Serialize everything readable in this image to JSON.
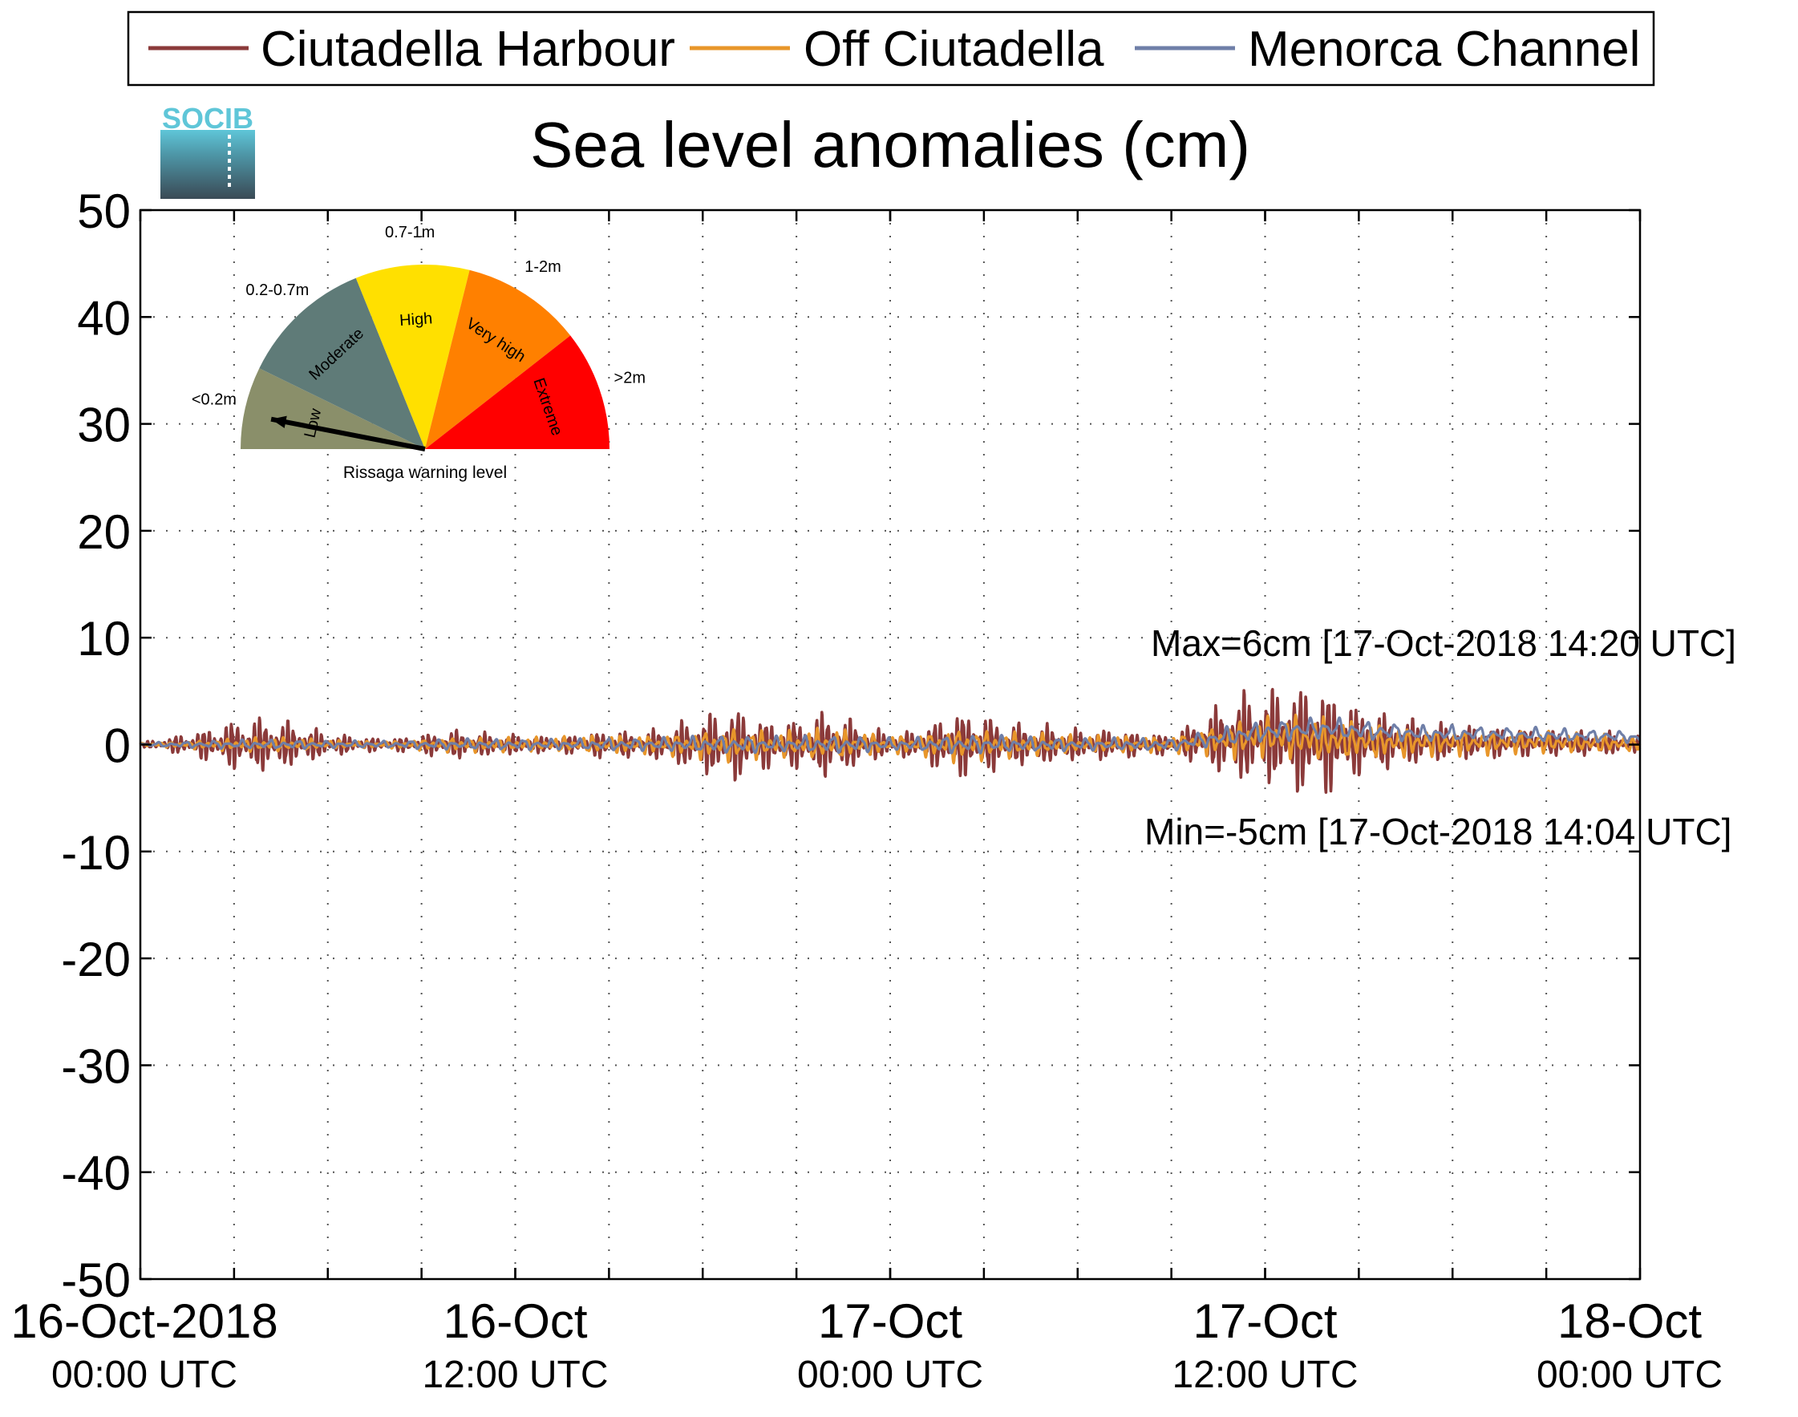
{
  "legend": {
    "placement": "top",
    "entries": [
      {
        "name": "Ciutadella Harbour",
        "color": "#8B3A3A"
      },
      {
        "name": "Off Ciutadella",
        "color": "#E8962A"
      },
      {
        "name": "Menorca Channel",
        "color": "#6F7FA8"
      }
    ]
  },
  "logo": {
    "text": "SOCIB"
  },
  "gauge": {
    "caption": "Rissaga warning level",
    "needle_level": "Low",
    "sectors": [
      {
        "name": "Low",
        "range": "<0.2m",
        "color": "#8A8F6A",
        "range_color": "#7A7A55"
      },
      {
        "name": "Moderate",
        "range": "0.2-0.7m",
        "color": "#5F7B78",
        "range_color": "#4F6A6A"
      },
      {
        "name": "High",
        "range": "0.7-1m",
        "color": "#FFE000",
        "range_color": "#E8C800"
      },
      {
        "name": "Very high",
        "range": "1-2m",
        "color": "#FF8000",
        "range_color": "#F07000"
      },
      {
        "name": "Extreme",
        "range": ">2m",
        "color": "#FF0000",
        "range_color": "#FF0000"
      }
    ]
  },
  "annotations": {
    "max": "Max=6cm [17-Oct-2018 14:20 UTC]",
    "min": "Min=-5cm [17-Oct-2018 14:04 UTC]",
    "color": "#8B3A3A"
  },
  "chart_data": {
    "type": "line",
    "title": "Sea level anomalies (cm)",
    "xlabel": "",
    "ylabel": "",
    "ylim": [
      -50,
      50
    ],
    "yticks": [
      -50,
      -40,
      -30,
      -20,
      -10,
      0,
      10,
      20,
      30,
      40,
      50
    ],
    "xlim_hours": [
      0,
      48
    ],
    "grid": true,
    "grid_x_hours": [
      3,
      6,
      9,
      12,
      15,
      18,
      21,
      24,
      27,
      30,
      33,
      36,
      39,
      42,
      45
    ],
    "xticks": [
      {
        "hour": 0,
        "line1": "16-Oct-2018",
        "line2": "00:00 UTC"
      },
      {
        "hour": 12,
        "line1": "16-Oct",
        "line2": "12:00 UTC"
      },
      {
        "hour": 24,
        "line1": "17-Oct",
        "line2": "00:00 UTC"
      },
      {
        "hour": 36,
        "line1": "17-Oct",
        "line2": "12:00 UTC"
      },
      {
        "hour": 48,
        "line1": "18-Oct",
        "line2": "00:00 UTC"
      }
    ],
    "envelope_hours": [
      0,
      1,
      2,
      3,
      4,
      5,
      6,
      7,
      8,
      9,
      10,
      11,
      12,
      13,
      14,
      15,
      16,
      17,
      18,
      19,
      20,
      21,
      22,
      23,
      24,
      25,
      26,
      27,
      28,
      29,
      30,
      31,
      32,
      33,
      34,
      35,
      36,
      37,
      38,
      39,
      40,
      41,
      42,
      43,
      44,
      45,
      46,
      47,
      48
    ],
    "series": [
      {
        "name": "Ciutadella Harbour",
        "color": "#8B3A3A",
        "period_hours": 0.18,
        "amplitude_cm": [
          0.2,
          0.8,
          1.5,
          2.5,
          2.8,
          2.2,
          1.2,
          0.8,
          0.6,
          1.0,
          1.5,
          1.2,
          1.0,
          0.8,
          1.0,
          1.5,
          1.2,
          2.0,
          3.0,
          3.8,
          2.5,
          2.5,
          3.5,
          2.2,
          1.2,
          1.5,
          3.5,
          3.0,
          2.2,
          2.0,
          1.6,
          1.5,
          1.2,
          1.0,
          2.5,
          4.5,
          4.8,
          5.5,
          5.5,
          3.5,
          2.8,
          2.2,
          1.8,
          1.6,
          1.5,
          1.3,
          1.3,
          1.2,
          0.8
        ],
        "offset_cm": [
          0,
          0,
          0,
          0,
          0,
          0,
          0,
          0,
          0,
          0,
          0,
          0,
          0,
          0,
          0,
          0,
          0,
          0,
          0,
          0,
          0,
          0,
          0,
          0,
          0,
          0,
          0,
          0,
          0,
          0,
          0,
          0,
          0,
          0,
          0.3,
          0.5,
          0.8,
          0.5,
          0.3,
          0.3,
          0.2,
          0.2,
          0.2,
          0.2,
          0.2,
          0.2,
          0.1,
          0.1,
          0
        ]
      },
      {
        "name": "Off Ciutadella",
        "color": "#E8962A",
        "period_hours": 0.3,
        "amplitude_cm": [
          0.2,
          0.3,
          0.5,
          0.7,
          0.8,
          0.7,
          0.5,
          0.4,
          0.4,
          0.6,
          0.8,
          0.8,
          0.8,
          0.8,
          0.9,
          1.0,
          1.0,
          1.2,
          1.5,
          1.8,
          1.5,
          1.5,
          1.8,
          1.4,
          1.0,
          1.2,
          1.8,
          1.6,
          1.4,
          1.2,
          1.0,
          1.0,
          0.9,
          0.9,
          1.4,
          2.0,
          2.2,
          2.4,
          2.4,
          2.0,
          1.8,
          1.5,
          1.4,
          1.3,
          1.2,
          1.2,
          1.1,
          1.0,
          0.8
        ],
        "offset_cm": [
          0,
          0,
          0,
          0,
          0,
          0,
          0,
          0,
          0,
          0,
          0,
          0,
          0,
          0,
          0,
          0,
          0,
          0,
          0,
          0,
          0,
          0,
          0,
          0,
          0,
          0,
          0,
          0,
          0,
          0,
          0,
          0,
          0,
          0,
          0.3,
          0.5,
          0.8,
          0.6,
          0.4,
          0.3,
          0.2,
          0.2,
          0.2,
          0.2,
          0.2,
          0.2,
          0.1,
          0.1,
          0
        ]
      },
      {
        "name": "Menorca Channel",
        "color": "#6F7FA8",
        "period_hours": 0.45,
        "amplitude_cm": [
          0.2,
          0.3,
          0.4,
          0.5,
          0.5,
          0.5,
          0.4,
          0.4,
          0.4,
          0.5,
          0.6,
          0.6,
          0.6,
          0.6,
          0.6,
          0.7,
          0.7,
          0.8,
          0.9,
          1.0,
          0.9,
          0.9,
          1.0,
          0.9,
          0.7,
          0.8,
          1.0,
          1.0,
          0.9,
          0.8,
          0.7,
          0.7,
          0.7,
          0.7,
          0.9,
          1.1,
          1.2,
          1.2,
          1.2,
          1.1,
          1.0,
          0.9,
          0.9,
          0.8,
          0.8,
          0.8,
          0.7,
          0.7,
          0.6
        ],
        "offset_cm": [
          0,
          0,
          0,
          0,
          0,
          0,
          0,
          0,
          0,
          0,
          0,
          0,
          0,
          0,
          0,
          0,
          0,
          0,
          0,
          0,
          0,
          0,
          0,
          0,
          0,
          0,
          0,
          0,
          0,
          0,
          0,
          0,
          0,
          0,
          0.4,
          0.8,
          1.2,
          1.4,
          1.5,
          1.3,
          1.2,
          1.0,
          1.0,
          1.0,
          0.9,
          0.9,
          0.8,
          0.8,
          0.6
        ]
      }
    ]
  }
}
